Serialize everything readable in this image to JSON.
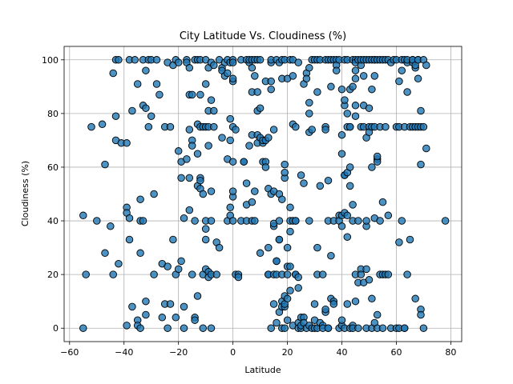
{
  "chart_data": {
    "type": "scatter",
    "title": "City Latitude Vs. Cloudiness (%)",
    "xlabel": "Latitude",
    "ylabel": "Cloudiness (%)",
    "xlim": [
      -62,
      84
    ],
    "ylim": [
      -5,
      105
    ],
    "xticks": [
      -60,
      -40,
      -20,
      0,
      20,
      40,
      60,
      80
    ],
    "yticks": [
      0,
      20,
      40,
      60,
      80,
      100
    ],
    "grid": true,
    "marker_color": "#1f77b4",
    "edge_color": "#000000",
    "points": [
      [
        -55,
        0
      ],
      [
        -55,
        42
      ],
      [
        -54,
        20
      ],
      [
        -52,
        75
      ],
      [
        -50,
        40
      ],
      [
        -48,
        76
      ],
      [
        -47,
        61
      ],
      [
        -47,
        28
      ],
      [
        -45,
        38
      ],
      [
        -44,
        95
      ],
      [
        -44,
        20
      ],
      [
        -43,
        79
      ],
      [
        -43,
        100
      ],
      [
        -43,
        70
      ],
      [
        -42,
        100
      ],
      [
        -42,
        24
      ],
      [
        -41,
        69
      ],
      [
        -39,
        45
      ],
      [
        -39,
        43
      ],
      [
        -39,
        1
      ],
      [
        -39,
        69
      ],
      [
        -38,
        41
      ],
      [
        -38,
        100
      ],
      [
        -38,
        33
      ],
      [
        -37,
        81
      ],
      [
        -37,
        8
      ],
      [
        -36,
        100
      ],
      [
        -35,
        91
      ],
      [
        -35,
        3
      ],
      [
        -35,
        1
      ],
      [
        -34,
        0
      ],
      [
        -34,
        48
      ],
      [
        -34,
        40
      ],
      [
        -34,
        28
      ],
      [
        -33,
        40
      ],
      [
        -33,
        100
      ],
      [
        -33,
        83
      ],
      [
        -32,
        96
      ],
      [
        -32,
        82
      ],
      [
        -32,
        10
      ],
      [
        -32,
        5
      ],
      [
        -31,
        75
      ],
      [
        -31,
        100
      ],
      [
        -30,
        79
      ],
      [
        -30,
        100
      ],
      [
        -29,
        20
      ],
      [
        -29,
        50
      ],
      [
        -28,
        91
      ],
      [
        -28,
        100
      ],
      [
        -27,
        87
      ],
      [
        -26,
        4
      ],
      [
        -26,
        24
      ],
      [
        -25,
        9
      ],
      [
        -25,
        75
      ],
      [
        -24,
        0
      ],
      [
        -24,
        99
      ],
      [
        -24,
        23
      ],
      [
        -23,
        75
      ],
      [
        -23,
        9
      ],
      [
        -22,
        98
      ],
      [
        -22,
        33
      ],
      [
        -21,
        20
      ],
      [
        -21,
        4
      ],
      [
        -21,
        100
      ],
      [
        -20,
        22
      ],
      [
        -20,
        66
      ],
      [
        -20,
        99
      ],
      [
        -19,
        56
      ],
      [
        -19,
        62
      ],
      [
        -19,
        25
      ],
      [
        -18,
        41
      ],
      [
        -18,
        8
      ],
      [
        -18,
        0
      ],
      [
        -17,
        100
      ],
      [
        -17,
        99
      ],
      [
        -17,
        63
      ],
      [
        -16,
        97
      ],
      [
        -16,
        87
      ],
      [
        -16,
        44
      ],
      [
        -16,
        56
      ],
      [
        -16,
        74
      ],
      [
        -15,
        70
      ],
      [
        -15,
        20
      ],
      [
        -15,
        87
      ],
      [
        -15,
        68
      ],
      [
        -14,
        4
      ],
      [
        -14,
        3
      ],
      [
        -14,
        40
      ],
      [
        -14,
        100
      ],
      [
        -13,
        76
      ],
      [
        -13,
        65
      ],
      [
        -13,
        53
      ],
      [
        -13,
        100
      ],
      [
        -13,
        12
      ],
      [
        -12,
        87
      ],
      [
        -12,
        75
      ],
      [
        -12,
        56
      ],
      [
        -12,
        52
      ],
      [
        -12,
        55
      ],
      [
        -12,
        100
      ],
      [
        -11,
        75
      ],
      [
        -11,
        0
      ],
      [
        -11,
        20
      ],
      [
        -11,
        50
      ],
      [
        -10,
        37
      ],
      [
        -10,
        75
      ],
      [
        -10,
        22
      ],
      [
        -10,
        33
      ],
      [
        -10,
        91
      ],
      [
        -10,
        40
      ],
      [
        -10,
        100
      ],
      [
        -9,
        97
      ],
      [
        -9,
        68
      ],
      [
        -9,
        75
      ],
      [
        -9,
        81
      ],
      [
        -9,
        21
      ],
      [
        -9,
        19
      ],
      [
        -8,
        51
      ],
      [
        -8,
        40
      ],
      [
        -8,
        20
      ],
      [
        -8,
        99
      ],
      [
        -8,
        0
      ],
      [
        -8,
        85
      ],
      [
        -7,
        81
      ],
      [
        -7,
        75
      ],
      [
        -7,
        98
      ],
      [
        -6,
        32
      ],
      [
        -6,
        20
      ],
      [
        -5,
        30
      ],
      [
        -5,
        100
      ],
      [
        -4,
        97
      ],
      [
        -4,
        96
      ],
      [
        -4,
        71
      ],
      [
        -3,
        94
      ],
      [
        -3,
        99
      ],
      [
        -2,
        95
      ],
      [
        -2,
        40
      ],
      [
        -2,
        100
      ],
      [
        -2,
        63
      ],
      [
        -1,
        78
      ],
      [
        -1,
        70
      ],
      [
        -1,
        99
      ],
      [
        -1,
        45
      ],
      [
        -1,
        42
      ],
      [
        0,
        49
      ],
      [
        0,
        62
      ],
      [
        0,
        75
      ],
      [
        0,
        92
      ],
      [
        0,
        40
      ],
      [
        0,
        51
      ],
      [
        0,
        93
      ],
      [
        0,
        100
      ],
      [
        0,
        99
      ],
      [
        1,
        20
      ],
      [
        1,
        74
      ],
      [
        2,
        20
      ],
      [
        2,
        19
      ],
      [
        3,
        100
      ],
      [
        3,
        40
      ],
      [
        4,
        62
      ],
      [
        4,
        62
      ],
      [
        5,
        46
      ],
      [
        5,
        100
      ],
      [
        5,
        40
      ],
      [
        5,
        54
      ],
      [
        6,
        68
      ],
      [
        6,
        99
      ],
      [
        6,
        100
      ],
      [
        7,
        72
      ],
      [
        7,
        97
      ],
      [
        7,
        88
      ],
      [
        7,
        47
      ],
      [
        7,
        40
      ],
      [
        7,
        100
      ],
      [
        8,
        40
      ],
      [
        8,
        51
      ],
      [
        8,
        94
      ],
      [
        8,
        100
      ],
      [
        9,
        100
      ],
      [
        9,
        72
      ],
      [
        9,
        88
      ],
      [
        9,
        81
      ],
      [
        9,
        69
      ],
      [
        10,
        28
      ],
      [
        10,
        82
      ],
      [
        10,
        71
      ],
      [
        10,
        100
      ],
      [
        11,
        62
      ],
      [
        11,
        69
      ],
      [
        11,
        70
      ],
      [
        12,
        92
      ],
      [
        12,
        70
      ],
      [
        12,
        62
      ],
      [
        12,
        60
      ],
      [
        13,
        71
      ],
      [
        13,
        52
      ],
      [
        13,
        20
      ],
      [
        13,
        30
      ],
      [
        13,
        20
      ],
      [
        14,
        0
      ],
      [
        14,
        50
      ],
      [
        14,
        99
      ],
      [
        14,
        100
      ],
      [
        14,
        92
      ],
      [
        14,
        89
      ],
      [
        15,
        74
      ],
      [
        15,
        51
      ],
      [
        15,
        9
      ],
      [
        15,
        20
      ],
      [
        15,
        38
      ],
      [
        15,
        39
      ],
      [
        16,
        2
      ],
      [
        16,
        25
      ],
      [
        16,
        100
      ],
      [
        16,
        25
      ],
      [
        16,
        20
      ],
      [
        17,
        33
      ],
      [
        17,
        40
      ],
      [
        17,
        50
      ],
      [
        17,
        6
      ],
      [
        17,
        33
      ],
      [
        17,
        99
      ],
      [
        18,
        93
      ],
      [
        18,
        48
      ],
      [
        18,
        20
      ],
      [
        18,
        10
      ],
      [
        18,
        8
      ],
      [
        18,
        0
      ],
      [
        18,
        100
      ],
      [
        19,
        56
      ],
      [
        19,
        58
      ],
      [
        19,
        61
      ],
      [
        19,
        8
      ],
      [
        19,
        12
      ],
      [
        19,
        0
      ],
      [
        19,
        100
      ],
      [
        19,
        9
      ],
      [
        20,
        11
      ],
      [
        20,
        3
      ],
      [
        20,
        20
      ],
      [
        20,
        93
      ],
      [
        20,
        23
      ],
      [
        20,
        30
      ],
      [
        21,
        36
      ],
      [
        21,
        14
      ],
      [
        21,
        45
      ],
      [
        21,
        40
      ],
      [
        21,
        23
      ],
      [
        21,
        100
      ],
      [
        22,
        94
      ],
      [
        22,
        76
      ],
      [
        22,
        40
      ],
      [
        22,
        1
      ],
      [
        22,
        100
      ],
      [
        23,
        75
      ],
      [
        23,
        40
      ],
      [
        23,
        20
      ],
      [
        23,
        20
      ],
      [
        23,
        40
      ],
      [
        24,
        15
      ],
      [
        24,
        99
      ],
      [
        24,
        19
      ],
      [
        24,
        2
      ],
      [
        24,
        0
      ],
      [
        25,
        4
      ],
      [
        25,
        0
      ],
      [
        25,
        57
      ],
      [
        25,
        1
      ],
      [
        26,
        91
      ],
      [
        26,
        4
      ],
      [
        26,
        54
      ],
      [
        26,
        2
      ],
      [
        27,
        95
      ],
      [
        27,
        93
      ],
      [
        27,
        0
      ],
      [
        28,
        97
      ],
      [
        28,
        80
      ],
      [
        28,
        73
      ],
      [
        28,
        84
      ],
      [
        28,
        1
      ],
      [
        28,
        40
      ],
      [
        29,
        100
      ],
      [
        29,
        74
      ],
      [
        29,
        0
      ],
      [
        30,
        100
      ],
      [
        30,
        0
      ],
      [
        30,
        9
      ],
      [
        30,
        3
      ],
      [
        31,
        20
      ],
      [
        31,
        30
      ],
      [
        31,
        88
      ],
      [
        31,
        100
      ],
      [
        31,
        0
      ],
      [
        32,
        53
      ],
      [
        32,
        100
      ],
      [
        32,
        2
      ],
      [
        33,
        1
      ],
      [
        33,
        20
      ],
      [
        33,
        0
      ],
      [
        34,
        75
      ],
      [
        34,
        74
      ],
      [
        34,
        6
      ],
      [
        34,
        7
      ],
      [
        34,
        100
      ],
      [
        35,
        100
      ],
      [
        35,
        55
      ],
      [
        35,
        40
      ],
      [
        35,
        0
      ],
      [
        35,
        0
      ],
      [
        36,
        90
      ],
      [
        36,
        27
      ],
      [
        36,
        11
      ],
      [
        36,
        100
      ],
      [
        37,
        100
      ],
      [
        37,
        40
      ],
      [
        37,
        10
      ],
      [
        37,
        9
      ],
      [
        38,
        100
      ],
      [
        38,
        98
      ],
      [
        38,
        96
      ],
      [
        39,
        42
      ],
      [
        39,
        0
      ],
      [
        39,
        40
      ],
      [
        39,
        100
      ],
      [
        40,
        65
      ],
      [
        40,
        89
      ],
      [
        40,
        72
      ],
      [
        40,
        42
      ],
      [
        40,
        38
      ],
      [
        40,
        1
      ],
      [
        40,
        3
      ],
      [
        41,
        57
      ],
      [
        41,
        83
      ],
      [
        41,
        100
      ],
      [
        41,
        85
      ],
      [
        41,
        57
      ],
      [
        41,
        43
      ],
      [
        41,
        0
      ],
      [
        42,
        75
      ],
      [
        42,
        80
      ],
      [
        42,
        42
      ],
      [
        42,
        34
      ],
      [
        42,
        9
      ],
      [
        42,
        100
      ],
      [
        42,
        58
      ],
      [
        43,
        75
      ],
      [
        43,
        89
      ],
      [
        43,
        53
      ],
      [
        43,
        60
      ],
      [
        43,
        0
      ],
      [
        43,
        75
      ],
      [
        44,
        46
      ],
      [
        44,
        100
      ],
      [
        44,
        90
      ],
      [
        44,
        1
      ],
      [
        44,
        0
      ],
      [
        44,
        40
      ],
      [
        45,
        100
      ],
      [
        45,
        99
      ],
      [
        45,
        93
      ],
      [
        45,
        96
      ],
      [
        45,
        83
      ],
      [
        45,
        79
      ],
      [
        45,
        10
      ],
      [
        45,
        20
      ],
      [
        46,
        100
      ],
      [
        46,
        17
      ],
      [
        46,
        0
      ],
      [
        46,
        40
      ],
      [
        47,
        98
      ],
      [
        47,
        100
      ],
      [
        47,
        75
      ],
      [
        47,
        22
      ],
      [
        47,
        20
      ],
      [
        48,
        100
      ],
      [
        48,
        75
      ],
      [
        48,
        83
      ],
      [
        48,
        17
      ],
      [
        48,
        94
      ],
      [
        49,
        38
      ],
      [
        49,
        71
      ],
      [
        49,
        100
      ],
      [
        49,
        40
      ],
      [
        49,
        0
      ],
      [
        49,
        22
      ],
      [
        50,
        75
      ],
      [
        50,
        82
      ],
      [
        50,
        73
      ],
      [
        50,
        18
      ],
      [
        50,
        100
      ],
      [
        51,
        60
      ],
      [
        51,
        89
      ],
      [
        51,
        11
      ],
      [
        51,
        75
      ],
      [
        51,
        100
      ],
      [
        51,
        0
      ],
      [
        52,
        94
      ],
      [
        52,
        100
      ],
      [
        52,
        41
      ],
      [
        52,
        2
      ],
      [
        52,
        75
      ],
      [
        52,
        100
      ],
      [
        53,
        63
      ],
      [
        53,
        62
      ],
      [
        53,
        64
      ],
      [
        53,
        5
      ],
      [
        53,
        0
      ],
      [
        53,
        100
      ],
      [
        54,
        40
      ],
      [
        54,
        75
      ],
      [
        54,
        20
      ],
      [
        54,
        100
      ],
      [
        55,
        47
      ],
      [
        55,
        20
      ],
      [
        55,
        100
      ],
      [
        55,
        0
      ],
      [
        56,
        75
      ],
      [
        56,
        100
      ],
      [
        56,
        20
      ],
      [
        57,
        42
      ],
      [
        57,
        20
      ],
      [
        57,
        100
      ],
      [
        58,
        99
      ],
      [
        58,
        0
      ],
      [
        59,
        100
      ],
      [
        60,
        100
      ],
      [
        60,
        75
      ],
      [
        60,
        0
      ],
      [
        61,
        75
      ],
      [
        61,
        32
      ],
      [
        61,
        92
      ],
      [
        61,
        0
      ],
      [
        62,
        100
      ],
      [
        62,
        96
      ],
      [
        62,
        40
      ],
      [
        63,
        0
      ],
      [
        63,
        75
      ],
      [
        63,
        0
      ],
      [
        63,
        100
      ],
      [
        64,
        99
      ],
      [
        64,
        20
      ],
      [
        64,
        88
      ],
      [
        64,
        100
      ],
      [
        65,
        33
      ],
      [
        65,
        75
      ],
      [
        66,
        100
      ],
      [
        66,
        99
      ],
      [
        66,
        100
      ],
      [
        66,
        75
      ],
      [
        67,
        97
      ],
      [
        67,
        75
      ],
      [
        67,
        11
      ],
      [
        67,
        98
      ],
      [
        68,
        100
      ],
      [
        68,
        75
      ],
      [
        68,
        93
      ],
      [
        68,
        100
      ],
      [
        69,
        61
      ],
      [
        69,
        7
      ],
      [
        69,
        5
      ],
      [
        69,
        75
      ],
      [
        69,
        81
      ],
      [
        70,
        0
      ],
      [
        70,
        75
      ],
      [
        70,
        100
      ],
      [
        71,
        98
      ],
      [
        71,
        67
      ],
      [
        78,
        40
      ]
    ]
  }
}
